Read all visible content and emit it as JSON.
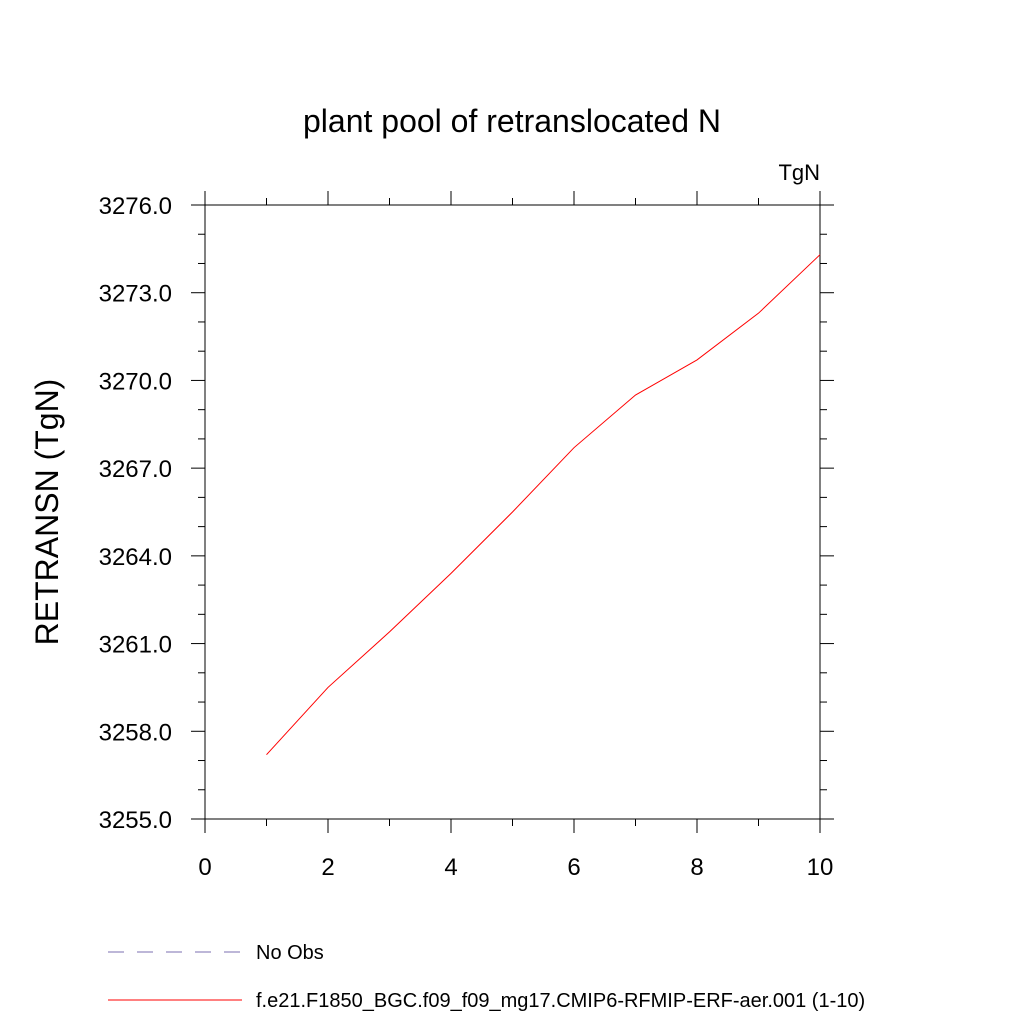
{
  "chart_data": {
    "type": "line",
    "title": "plant pool of retranslocated N",
    "units_label": "TgN",
    "ylabel": "RETRANSN  (TgN)",
    "xlabel": "",
    "xlim": [
      0,
      10
    ],
    "ylim": [
      3255.0,
      3276.0
    ],
    "x_ticks": [
      0,
      2,
      4,
      6,
      8,
      10
    ],
    "x_tick_labels": [
      "0",
      "2",
      "4",
      "6",
      "8",
      "10"
    ],
    "y_ticks": [
      3255.0,
      3258.0,
      3261.0,
      3264.0,
      3267.0,
      3270.0,
      3273.0,
      3276.0
    ],
    "y_tick_labels": [
      "3255.0",
      "3258.0",
      "3261.0",
      "3264.0",
      "3267.0",
      "3270.0",
      "3273.0",
      "3276.0"
    ],
    "grid": false,
    "series": [
      {
        "name": "f.e21.F1850_BGC.f09_f09_mg17.CMIP6-RFMIP-ERF-aer.001 (1-10)",
        "color": "#ff0000",
        "x": [
          1,
          2,
          3,
          4,
          5,
          6,
          7,
          8,
          9,
          10
        ],
        "values": [
          3257.2,
          3259.5,
          3261.4,
          3263.4,
          3265.5,
          3267.7,
          3269.5,
          3270.7,
          3272.3,
          3274.3
        ]
      }
    ],
    "legend": {
      "placement": "bottom",
      "entries": [
        {
          "label": "No Obs",
          "color": "#7b6fb0",
          "style": "dashed"
        },
        {
          "label": "f.e21.F1850_BGC.f09_f09_mg17.CMIP6-RFMIP-ERF-aer.001 (1-10)",
          "color": "#ff0000",
          "style": "solid"
        }
      ]
    }
  }
}
